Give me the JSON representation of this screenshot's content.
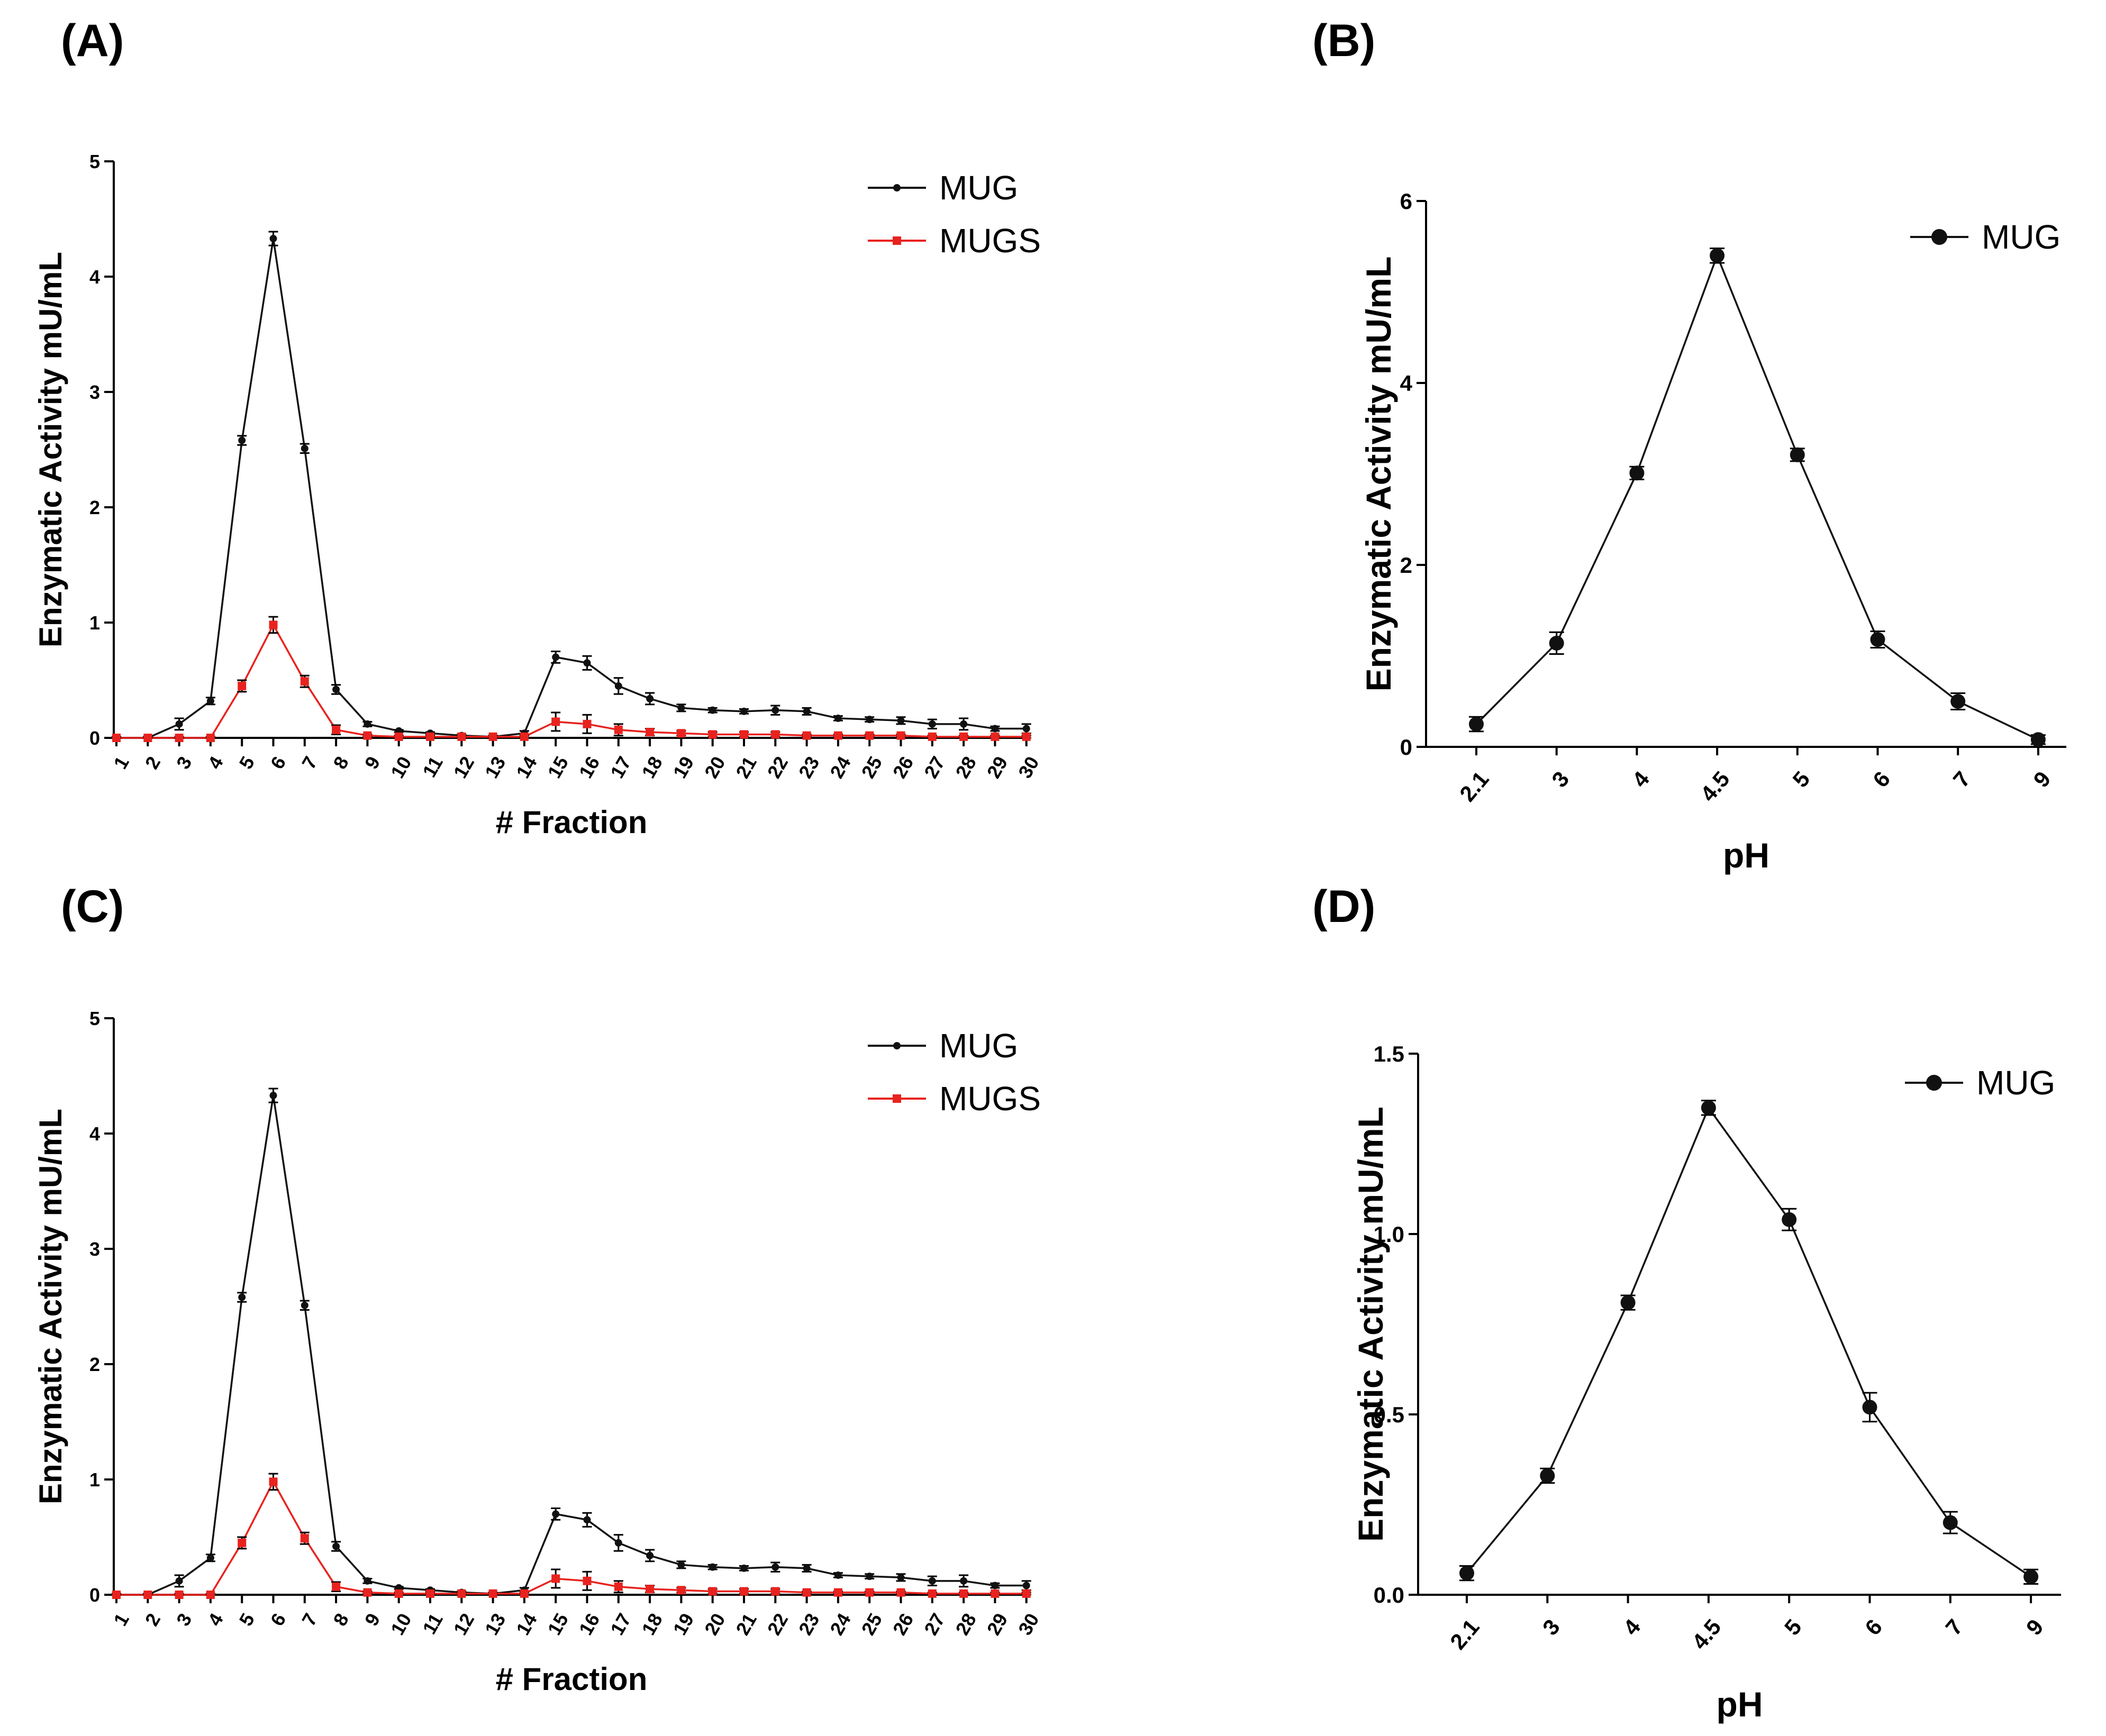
{
  "panels": [
    {
      "label": "(A)"
    },
    {
      "label": "(B)"
    },
    {
      "label": "(C)"
    },
    {
      "label": "(D)"
    }
  ],
  "colors": {
    "mug": "#111111",
    "mugs": "#e8231f",
    "axis": "#000000"
  },
  "chart_data": [
    {
      "panel": "(A)",
      "type": "line",
      "title": "",
      "xlabel": "# Fraction",
      "ylabel": "Enzymatic Activity mU/mL",
      "categories": [
        "1",
        "2",
        "3",
        "4",
        "5",
        "6",
        "7",
        "8",
        "9",
        "10",
        "11",
        "12",
        "13",
        "14",
        "15",
        "16",
        "17",
        "18",
        "19",
        "20",
        "21",
        "22",
        "23",
        "24",
        "25",
        "26",
        "27",
        "28",
        "29",
        "30"
      ],
      "ylim": [
        0,
        5
      ],
      "yticks": [
        "0",
        "1",
        "2",
        "3",
        "4",
        "5"
      ],
      "legend_position": "top-right",
      "series": [
        {
          "name": "MUG",
          "color": "#111111",
          "marker": "small-dot",
          "values": [
            0,
            0,
            0.12,
            0.32,
            2.58,
            4.33,
            2.51,
            0.42,
            0.12,
            0.06,
            0.04,
            0.02,
            0.01,
            0.04,
            0.7,
            0.65,
            0.45,
            0.34,
            0.26,
            0.24,
            0.23,
            0.24,
            0.23,
            0.17,
            0.16,
            0.15,
            0.12,
            0.12,
            0.08,
            0.08
          ],
          "errors": [
            0.01,
            0.01,
            0.05,
            0.03,
            0.04,
            0.06,
            0.04,
            0.04,
            0.02,
            0.01,
            0.01,
            0.01,
            0.01,
            0.02,
            0.05,
            0.06,
            0.07,
            0.05,
            0.03,
            0.02,
            0.02,
            0.04,
            0.03,
            0.02,
            0.02,
            0.03,
            0.04,
            0.05,
            0.02,
            0.04
          ]
        },
        {
          "name": "MUGS",
          "color": "#e8231f",
          "marker": "square",
          "values": [
            0,
            0,
            0,
            0,
            0.45,
            0.98,
            0.49,
            0.07,
            0.02,
            0.01,
            0.01,
            0.01,
            0.01,
            0.01,
            0.14,
            0.12,
            0.07,
            0.05,
            0.04,
            0.03,
            0.03,
            0.03,
            0.02,
            0.02,
            0.02,
            0.02,
            0.01,
            0.01,
            0.01,
            0.01
          ],
          "errors": [
            0.01,
            0.01,
            0.01,
            0.01,
            0.05,
            0.07,
            0.05,
            0.04,
            0.01,
            0.01,
            0.01,
            0.01,
            0.01,
            0.01,
            0.08,
            0.08,
            0.05,
            0.03,
            0.02,
            0.02,
            0.02,
            0.02,
            0.01,
            0.01,
            0.01,
            0.01,
            0.01,
            0.01,
            0.01,
            0.01
          ]
        }
      ]
    },
    {
      "panel": "(B)",
      "type": "line",
      "title": "",
      "xlabel": "pH",
      "ylabel": "Enzymatic Activity mU/mL",
      "categories": [
        "2.1",
        "3",
        "4",
        "4.5",
        "5",
        "6",
        "7",
        "9"
      ],
      "ylim": [
        0,
        6
      ],
      "yticks": [
        "0",
        "2",
        "4",
        "6"
      ],
      "legend_position": "top-right",
      "series": [
        {
          "name": "MUG",
          "color": "#111111",
          "marker": "dot",
          "values": [
            0.25,
            1.14,
            3.01,
            5.4,
            3.21,
            1.18,
            0.5,
            0.08
          ],
          "errors": [
            0.08,
            0.12,
            0.07,
            0.08,
            0.07,
            0.09,
            0.09,
            0.05
          ]
        }
      ]
    },
    {
      "panel": "(C)",
      "type": "line",
      "title": "",
      "xlabel": "# Fraction",
      "ylabel": "Enzymatic Activity mU/mL",
      "categories": [
        "1",
        "2",
        "3",
        "4",
        "5",
        "6",
        "7",
        "8",
        "9",
        "10",
        "11",
        "12",
        "13",
        "14",
        "15",
        "16",
        "17",
        "18",
        "19",
        "20",
        "21",
        "22",
        "23",
        "24",
        "25",
        "26",
        "27",
        "28",
        "29",
        "30"
      ],
      "ylim": [
        0,
        5
      ],
      "yticks": [
        "0",
        "1",
        "2",
        "3",
        "4",
        "5"
      ],
      "legend_position": "top-right",
      "series": [
        {
          "name": "MUG",
          "color": "#111111",
          "marker": "small-dot",
          "values": [
            0,
            0,
            0.12,
            0.32,
            2.58,
            4.33,
            2.51,
            0.42,
            0.12,
            0.06,
            0.04,
            0.02,
            0.01,
            0.04,
            0.7,
            0.65,
            0.45,
            0.34,
            0.26,
            0.24,
            0.23,
            0.24,
            0.23,
            0.17,
            0.16,
            0.15,
            0.12,
            0.12,
            0.08,
            0.08
          ],
          "errors": [
            0.01,
            0.01,
            0.05,
            0.03,
            0.04,
            0.06,
            0.04,
            0.04,
            0.02,
            0.01,
            0.01,
            0.01,
            0.01,
            0.02,
            0.05,
            0.06,
            0.07,
            0.05,
            0.03,
            0.02,
            0.02,
            0.04,
            0.03,
            0.02,
            0.02,
            0.03,
            0.04,
            0.05,
            0.02,
            0.04
          ]
        },
        {
          "name": "MUGS",
          "color": "#e8231f",
          "marker": "square",
          "values": [
            0,
            0,
            0,
            0,
            0.45,
            0.98,
            0.49,
            0.07,
            0.02,
            0.01,
            0.01,
            0.01,
            0.01,
            0.01,
            0.14,
            0.12,
            0.07,
            0.05,
            0.04,
            0.03,
            0.03,
            0.03,
            0.02,
            0.02,
            0.02,
            0.02,
            0.01,
            0.01,
            0.01,
            0.01
          ],
          "errors": [
            0.01,
            0.01,
            0.01,
            0.01,
            0.05,
            0.07,
            0.05,
            0.04,
            0.01,
            0.01,
            0.01,
            0.01,
            0.01,
            0.01,
            0.08,
            0.08,
            0.05,
            0.03,
            0.02,
            0.02,
            0.02,
            0.02,
            0.01,
            0.01,
            0.01,
            0.01,
            0.01,
            0.01,
            0.01,
            0.01
          ]
        }
      ]
    },
    {
      "panel": "(D)",
      "type": "line",
      "title": "",
      "xlabel": "pH",
      "ylabel": "Enzymatic Activity mU/mL",
      "categories": [
        "2.1",
        "3",
        "4",
        "4.5",
        "5",
        "6",
        "7",
        "9"
      ],
      "ylim": [
        0,
        1.5
      ],
      "yticks": [
        "0.0",
        "0.5",
        "1.0",
        "1.5"
      ],
      "legend_position": "top-right",
      "series": [
        {
          "name": "MUG",
          "color": "#111111",
          "marker": "dot",
          "values": [
            0.06,
            0.33,
            0.81,
            1.35,
            1.04,
            0.52,
            0.2,
            0.05
          ],
          "errors": [
            0.02,
            0.02,
            0.02,
            0.02,
            0.03,
            0.04,
            0.03,
            0.02
          ]
        }
      ]
    }
  ]
}
